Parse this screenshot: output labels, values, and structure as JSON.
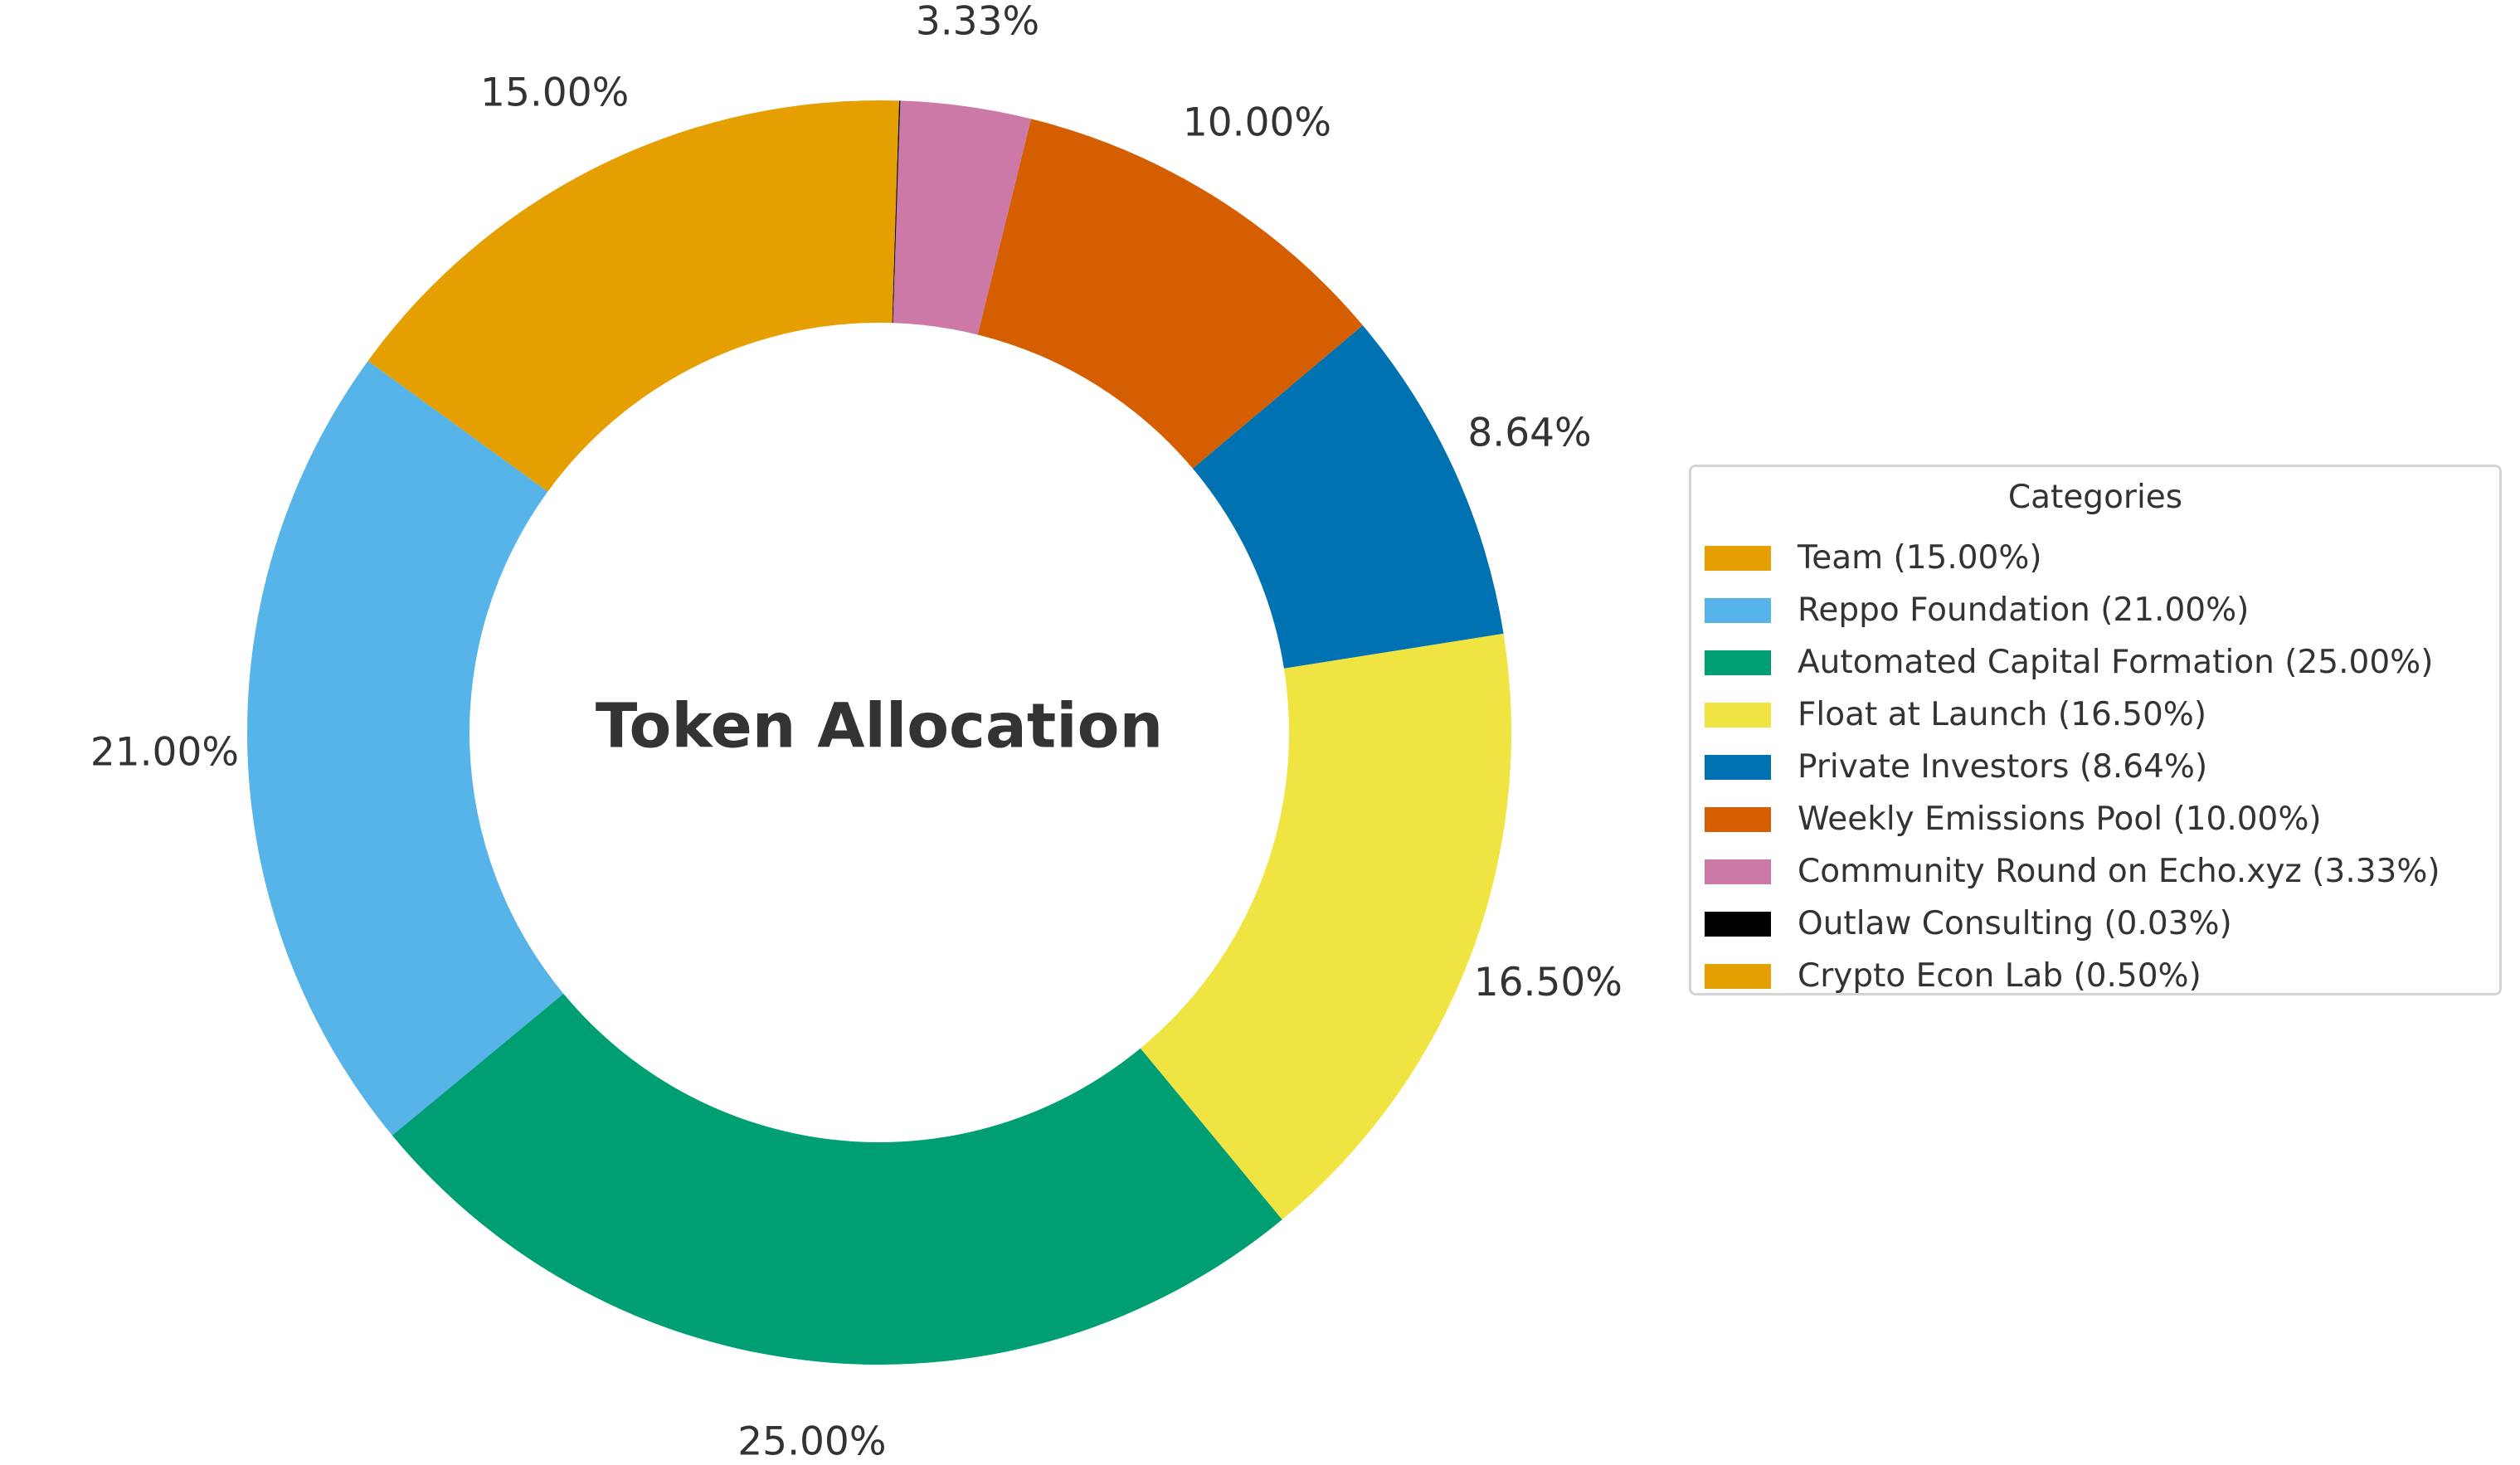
{
  "chart_data": {
    "type": "pie",
    "title": "Token Allocation",
    "donut": true,
    "start_angle_deg": 90,
    "direction": "counterclockwise",
    "slices": [
      {
        "label": "Team",
        "value": 15.0,
        "display": "15.00%",
        "legend": "Team (15.00%)",
        "color": "#E69F00"
      },
      {
        "label": "Reppo Foundation",
        "value": 21.0,
        "display": "21.00%",
        "legend": "Reppo Foundation (21.00%)",
        "color": "#56B4E9"
      },
      {
        "label": "Automated Capital Formation",
        "value": 25.0,
        "display": "25.00%",
        "legend": "Automated Capital Formation (25.00%)",
        "color": "#009E73"
      },
      {
        "label": "Float at Launch",
        "value": 16.5,
        "display": "16.50%",
        "legend": "Float at Launch (16.50%)",
        "color": "#F0E442"
      },
      {
        "label": "Private Investors",
        "value": 8.64,
        "display": "8.64%",
        "legend": "Private Investors (8.64%)",
        "color": "#0072B2"
      },
      {
        "label": "Weekly Emissions Pool",
        "value": 10.0,
        "display": "10.00%",
        "legend": "Weekly Emissions Pool (10.00%)",
        "color": "#D55E00"
      },
      {
        "label": "Community Round on Echo.xyz",
        "value": 3.33,
        "display": "3.33%",
        "legend": "Community Round on Echo.xyz (3.33%)",
        "color": "#CC79A7"
      },
      {
        "label": "Outlaw Consulting",
        "value": 0.03,
        "display": "",
        "legend": "Outlaw Consulting (0.03%)",
        "color": "#000000"
      },
      {
        "label": "Crypto Econ Lab",
        "value": 0.5,
        "display": "",
        "legend": "Crypto Econ Lab (0.50%)",
        "color": "#E69F00"
      }
    ],
    "legend": {
      "title": "Categories",
      "placement": "right"
    }
  }
}
